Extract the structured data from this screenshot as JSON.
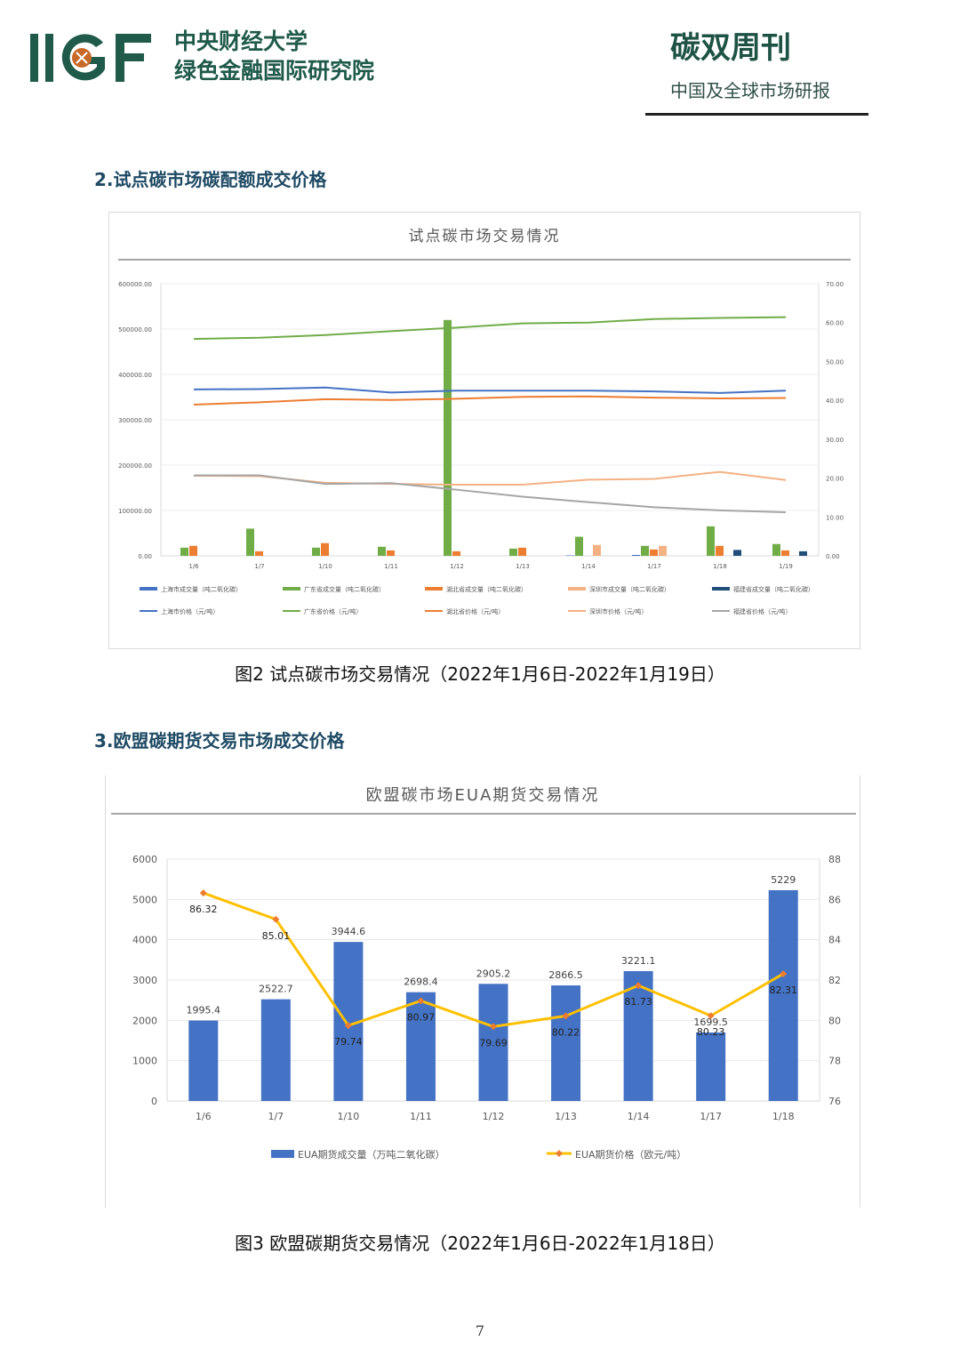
{
  "header": {
    "logo_text": "IIGF",
    "institution_line1": "中央财经大学",
    "institution_line2": "绿色金融国际研究院",
    "publication": "碳双周刊",
    "subtitle": "中国及全球市场研报",
    "colors": {
      "brand": "#1f5a4a",
      "accent": "#c8692a"
    }
  },
  "section2_title": "2.试点碳市场碳配额成交价格",
  "section3_title": "3.欧盟碳期货交易市场成交价格",
  "figure2_caption": "图2 试点碳市场交易情况（2022年1月6日-2022年1月19日）",
  "figure3_caption": "图3 欧盟碳期货交易情况（2022年1月6日-2022年1月18日）",
  "page_number": "7",
  "chart_data": [
    {
      "type": "bar",
      "title": "试点碳市场交易情况",
      "categories": [
        "1/6",
        "1/7",
        "1/10",
        "1/11",
        "1/12",
        "1/13",
        "1/14",
        "1/17",
        "1/18",
        "1/19"
      ],
      "y_left": {
        "ticks": [
          "0.00",
          "100000.00",
          "200000.00",
          "300000.00",
          "400000.00",
          "500000.00",
          "600000.00"
        ],
        "range": [
          0,
          600000
        ]
      },
      "y_right": {
        "ticks": [
          "0.00",
          "10.00",
          "20.00",
          "30.00",
          "40.00",
          "50.00",
          "60.00",
          "70.00"
        ],
        "range": [
          0,
          70
        ]
      },
      "bar_series": [
        {
          "name": "上海市成交量（吨二氧化碳）",
          "color": "#4472c4",
          "values": [
            0,
            0,
            0,
            0,
            0,
            0,
            1000,
            2000,
            0,
            0
          ]
        },
        {
          "name": "广东省成交量（吨二氧化碳）",
          "color": "#70ad47",
          "values": [
            18000,
            60000,
            18000,
            20000,
            520000,
            16000,
            42000,
            22000,
            65000,
            26000
          ]
        },
        {
          "name": "湖北省成交量（吨二氧化碳）",
          "color": "#ed7d31",
          "values": [
            22000,
            10000,
            28000,
            12000,
            10000,
            18000,
            0,
            14000,
            22000,
            12000
          ]
        },
        {
          "name": "深圳市成交量（吨二氧化碳）",
          "color": "#f4b183",
          "values": [
            0,
            0,
            0,
            0,
            0,
            0,
            24000,
            22000,
            0,
            0
          ]
        },
        {
          "name": "福建省成交量（吨二氧化碳）",
          "color": "#1f4e79",
          "values": [
            0,
            0,
            0,
            0,
            0,
            0,
            0,
            0,
            13000,
            10000
          ]
        }
      ],
      "line_series": [
        {
          "name": "上海市价格（元/吨）",
          "color": "#4472c4",
          "values": [
            42.8,
            42.9,
            43.3,
            42.0,
            42.5,
            42.5,
            42.5,
            42.3,
            41.9,
            42.5
          ]
        },
        {
          "name": "广东省价格（元/吨）",
          "color": "#70ad47",
          "values": [
            55.8,
            56.1,
            56.8,
            57.8,
            58.7,
            59.8,
            60.0,
            60.9,
            61.2,
            61.4
          ]
        },
        {
          "name": "湖北省价格（元/吨）",
          "color": "#ed7d31",
          "values": [
            38.9,
            39.5,
            40.3,
            40.1,
            40.4,
            40.9,
            41.0,
            40.7,
            40.5,
            40.6
          ]
        },
        {
          "name": "深圳市价格（元/吨）",
          "color": "#f4b183",
          "values": [
            20.6,
            20.5,
            18.8,
            18.5,
            18.3,
            18.3,
            19.6,
            19.8,
            21.6,
            19.5
          ]
        },
        {
          "name": "福建省价格（元/吨）",
          "color": "#a5a5a5",
          "values": [
            20.7,
            20.7,
            18.5,
            18.7,
            17.0,
            15.2,
            13.8,
            12.5,
            11.7,
            11.2
          ]
        }
      ],
      "legend_placement": "bottom"
    },
    {
      "type": "bar",
      "title": "欧盟碳市场EUA期货交易情况",
      "categories": [
        "1/6",
        "1/7",
        "1/10",
        "1/11",
        "1/12",
        "1/13",
        "1/14",
        "1/17",
        "1/18"
      ],
      "y_left": {
        "ticks": [
          "0",
          "1000",
          "2000",
          "3000",
          "4000",
          "5000",
          "6000"
        ],
        "range": [
          0,
          6000
        ]
      },
      "y_right": {
        "ticks": [
          "76",
          "78",
          "80",
          "82",
          "84",
          "86",
          "88"
        ],
        "range": [
          76,
          88
        ]
      },
      "series": [
        {
          "name": "EUA期货成交量（万吨二氧化碳）",
          "kind": "bar",
          "color": "#4472c4",
          "values": [
            1995.4,
            2522.7,
            3944.6,
            2698.4,
            2905.2,
            2866.5,
            3221.1,
            1699.5,
            5229
          ],
          "labels": [
            "1995.4",
            "2522.7",
            "3944.6",
            "2698.4",
            "2905.2",
            "2866.5",
            "3221.1",
            "1699.5",
            "5229"
          ]
        },
        {
          "name": "EUA期货价格（欧元/吨）",
          "kind": "line",
          "color": "#ffc000",
          "marker_color": "#ed7d31",
          "values": [
            86.32,
            85.01,
            79.74,
            80.97,
            79.69,
            80.22,
            81.73,
            80.23,
            82.31
          ],
          "labels": [
            "86.32",
            "85.01",
            "79.74",
            "80.97",
            "79.69",
            "80.22",
            "81.73",
            "80.23",
            "82.31"
          ]
        }
      ],
      "legend_placement": "bottom"
    }
  ]
}
